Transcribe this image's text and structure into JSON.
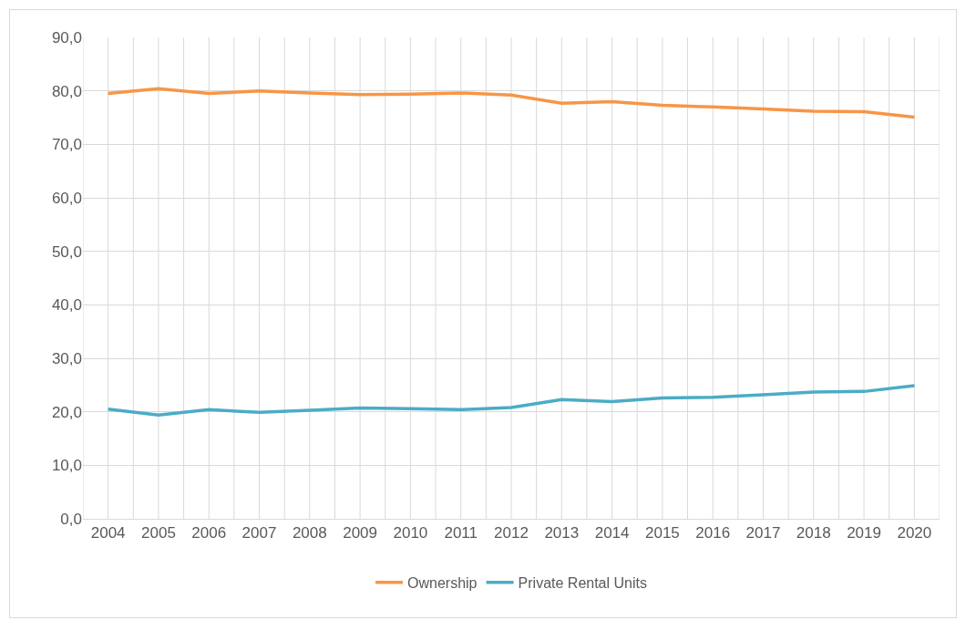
{
  "chart_data": {
    "type": "line",
    "categories": [
      "2004",
      "2005",
      "2006",
      "2007",
      "2008",
      "2009",
      "2010",
      "2011",
      "2012",
      "2013",
      "2014",
      "2015",
      "2016",
      "2017",
      "2018",
      "2019",
      "2020"
    ],
    "series": [
      {
        "name": "Ownership",
        "color": "#f79646",
        "values": [
          79.5,
          80.4,
          79.5,
          80.0,
          79.6,
          79.3,
          79.4,
          79.6,
          79.2,
          77.7,
          78.0,
          77.3,
          77.0,
          76.6,
          76.2,
          76.1,
          75.1
        ]
      },
      {
        "name": "Private Rental Units",
        "color": "#4bacc6",
        "values": [
          20.5,
          19.4,
          20.4,
          19.9,
          20.3,
          20.7,
          20.6,
          20.4,
          20.8,
          22.3,
          21.9,
          22.6,
          22.7,
          23.2,
          23.7,
          23.8,
          24.9
        ]
      }
    ],
    "ylim": [
      0,
      90
    ],
    "yticks": [
      {
        "value": 0,
        "label": "0,0"
      },
      {
        "value": 10,
        "label": "10,0"
      },
      {
        "value": 20,
        "label": "20,0"
      },
      {
        "value": 30,
        "label": "30,0"
      },
      {
        "value": 40,
        "label": "40,0"
      },
      {
        "value": 50,
        "label": "50,0"
      },
      {
        "value": 60,
        "label": "60,0"
      },
      {
        "value": 70,
        "label": "70,0"
      },
      {
        "value": 80,
        "label": "80,0"
      },
      {
        "value": 90,
        "label": "90,0"
      }
    ],
    "grid": true,
    "legend": "bottom",
    "marker": "none",
    "line_style": "solid"
  }
}
